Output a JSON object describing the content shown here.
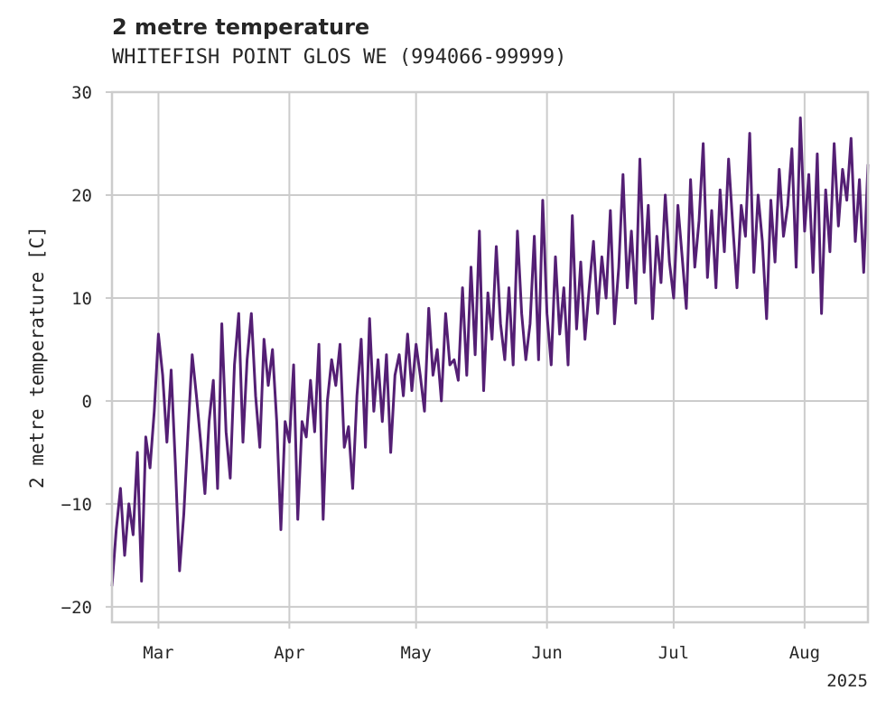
{
  "chart_data": {
    "type": "line",
    "title": "2 metre temperature",
    "subtitle": "WHITEFISH POINT GLOS WE (994066-99999)",
    "ylabel": "2 metre temperature [C]",
    "xlabel": "",
    "year_label": "2025",
    "ylim": [
      -21.5,
      30
    ],
    "xlim": [
      "2025-02-18",
      "2025-08-16"
    ],
    "y_ticks": [
      -20,
      -10,
      0,
      10,
      20,
      30
    ],
    "x_ticks": [
      {
        "date": "2025-03-01",
        "label": "Mar"
      },
      {
        "date": "2025-04-01",
        "label": "Apr"
      },
      {
        "date": "2025-05-01",
        "label": "May"
      },
      {
        "date": "2025-06-01",
        "label": "Jun"
      },
      {
        "date": "2025-07-01",
        "label": "Jul"
      },
      {
        "date": "2025-08-01",
        "label": "Aug"
      }
    ],
    "grid": true,
    "line_color": "#541f74",
    "grid_color": "#cccccc",
    "series": [
      {
        "values": [
          [
            "2025-02-18",
            -18.0
          ],
          [
            "2025-02-19",
            -12.5
          ],
          [
            "2025-02-20",
            -8.5
          ],
          [
            "2025-02-21",
            -15.0
          ],
          [
            "2025-02-22",
            -10.0
          ],
          [
            "2025-02-23",
            -13.0
          ],
          [
            "2025-02-24",
            -5.0
          ],
          [
            "2025-02-25",
            -17.5
          ],
          [
            "2025-02-26",
            -3.5
          ],
          [
            "2025-02-27",
            -6.5
          ],
          [
            "2025-02-28",
            -1.0
          ],
          [
            "2025-03-01",
            6.5
          ],
          [
            "2025-03-02",
            2.5
          ],
          [
            "2025-03-03",
            -4.0
          ],
          [
            "2025-03-04",
            3.0
          ],
          [
            "2025-03-05",
            -6.0
          ],
          [
            "2025-03-06",
            -16.5
          ],
          [
            "2025-03-07",
            -11.0
          ],
          [
            "2025-03-08",
            -3.0
          ],
          [
            "2025-03-09",
            4.5
          ],
          [
            "2025-03-10",
            0.5
          ],
          [
            "2025-03-11",
            -4.0
          ],
          [
            "2025-03-12",
            -9.0
          ],
          [
            "2025-03-13",
            -2.0
          ],
          [
            "2025-03-14",
            2.0
          ],
          [
            "2025-03-15",
            -8.5
          ],
          [
            "2025-03-16",
            7.5
          ],
          [
            "2025-03-17",
            -3.0
          ],
          [
            "2025-03-18",
            -7.5
          ],
          [
            "2025-03-19",
            3.5
          ],
          [
            "2025-03-20",
            8.5
          ],
          [
            "2025-03-21",
            -4.0
          ],
          [
            "2025-03-22",
            4.0
          ],
          [
            "2025-03-23",
            8.5
          ],
          [
            "2025-03-24",
            0.5
          ],
          [
            "2025-03-25",
            -4.5
          ],
          [
            "2025-03-26",
            6.0
          ],
          [
            "2025-03-27",
            1.5
          ],
          [
            "2025-03-28",
            5.0
          ],
          [
            "2025-03-29",
            -2.0
          ],
          [
            "2025-03-30",
            -12.5
          ],
          [
            "2025-03-31",
            -2.0
          ],
          [
            "2025-04-01",
            -4.0
          ],
          [
            "2025-04-02",
            3.5
          ],
          [
            "2025-04-03",
            -11.5
          ],
          [
            "2025-04-04",
            -2.0
          ],
          [
            "2025-04-05",
            -3.5
          ],
          [
            "2025-04-06",
            2.0
          ],
          [
            "2025-04-07",
            -3.0
          ],
          [
            "2025-04-08",
            5.5
          ],
          [
            "2025-04-09",
            -11.5
          ],
          [
            "2025-04-10",
            0.0
          ],
          [
            "2025-04-11",
            4.0
          ],
          [
            "2025-04-12",
            1.5
          ],
          [
            "2025-04-13",
            5.5
          ],
          [
            "2025-04-14",
            -4.5
          ],
          [
            "2025-04-15",
            -2.5
          ],
          [
            "2025-04-16",
            -8.5
          ],
          [
            "2025-04-17",
            0.5
          ],
          [
            "2025-04-18",
            6.0
          ],
          [
            "2025-04-19",
            -4.5
          ],
          [
            "2025-04-20",
            8.0
          ],
          [
            "2025-04-21",
            -1.0
          ],
          [
            "2025-04-22",
            4.0
          ],
          [
            "2025-04-23",
            -2.0
          ],
          [
            "2025-04-24",
            4.5
          ],
          [
            "2025-04-25",
            -5.0
          ],
          [
            "2025-04-26",
            2.5
          ],
          [
            "2025-04-27",
            4.5
          ],
          [
            "2025-04-28",
            0.5
          ],
          [
            "2025-04-29",
            6.5
          ],
          [
            "2025-04-30",
            1.0
          ],
          [
            "2025-05-01",
            5.5
          ],
          [
            "2025-05-02",
            2.5
          ],
          [
            "2025-05-03",
            -1.0
          ],
          [
            "2025-05-04",
            9.0
          ],
          [
            "2025-05-05",
            2.5
          ],
          [
            "2025-05-06",
            5.0
          ],
          [
            "2025-05-07",
            0.0
          ],
          [
            "2025-05-08",
            8.5
          ],
          [
            "2025-05-09",
            3.5
          ],
          [
            "2025-05-10",
            4.0
          ],
          [
            "2025-05-11",
            2.0
          ],
          [
            "2025-05-12",
            11.0
          ],
          [
            "2025-05-13",
            2.5
          ],
          [
            "2025-05-14",
            13.0
          ],
          [
            "2025-05-15",
            4.5
          ],
          [
            "2025-05-16",
            16.5
          ],
          [
            "2025-05-17",
            1.0
          ],
          [
            "2025-05-18",
            10.5
          ],
          [
            "2025-05-19",
            6.0
          ],
          [
            "2025-05-20",
            15.0
          ],
          [
            "2025-05-21",
            7.5
          ],
          [
            "2025-05-22",
            4.0
          ],
          [
            "2025-05-23",
            11.0
          ],
          [
            "2025-05-24",
            3.5
          ],
          [
            "2025-05-25",
            16.5
          ],
          [
            "2025-05-26",
            8.5
          ],
          [
            "2025-05-27",
            4.0
          ],
          [
            "2025-05-28",
            7.5
          ],
          [
            "2025-05-29",
            16.0
          ],
          [
            "2025-05-30",
            4.0
          ],
          [
            "2025-05-31",
            19.5
          ],
          [
            "2025-06-01",
            8.5
          ],
          [
            "2025-06-02",
            3.5
          ],
          [
            "2025-06-03",
            14.0
          ],
          [
            "2025-06-04",
            6.5
          ],
          [
            "2025-06-05",
            11.0
          ],
          [
            "2025-06-06",
            3.5
          ],
          [
            "2025-06-07",
            18.0
          ],
          [
            "2025-06-08",
            7.0
          ],
          [
            "2025-06-09",
            13.5
          ],
          [
            "2025-06-10",
            6.0
          ],
          [
            "2025-06-11",
            11.0
          ],
          [
            "2025-06-12",
            15.5
          ],
          [
            "2025-06-13",
            8.5
          ],
          [
            "2025-06-14",
            14.0
          ],
          [
            "2025-06-15",
            10.0
          ],
          [
            "2025-06-16",
            18.5
          ],
          [
            "2025-06-17",
            7.5
          ],
          [
            "2025-06-18",
            13.0
          ],
          [
            "2025-06-19",
            22.0
          ],
          [
            "2025-06-20",
            11.0
          ],
          [
            "2025-06-21",
            16.5
          ],
          [
            "2025-06-22",
            9.5
          ],
          [
            "2025-06-23",
            23.5
          ],
          [
            "2025-06-24",
            12.5
          ],
          [
            "2025-06-25",
            19.0
          ],
          [
            "2025-06-26",
            8.0
          ],
          [
            "2025-06-27",
            16.0
          ],
          [
            "2025-06-28",
            11.5
          ],
          [
            "2025-06-29",
            20.0
          ],
          [
            "2025-06-30",
            13.5
          ],
          [
            "2025-07-01",
            10.0
          ],
          [
            "2025-07-02",
            19.0
          ],
          [
            "2025-07-03",
            14.0
          ],
          [
            "2025-07-04",
            9.0
          ],
          [
            "2025-07-05",
            21.5
          ],
          [
            "2025-07-06",
            13.0
          ],
          [
            "2025-07-07",
            17.5
          ],
          [
            "2025-07-08",
            25.0
          ],
          [
            "2025-07-09",
            12.0
          ],
          [
            "2025-07-10",
            18.5
          ],
          [
            "2025-07-11",
            11.0
          ],
          [
            "2025-07-12",
            20.5
          ],
          [
            "2025-07-13",
            14.5
          ],
          [
            "2025-07-14",
            23.5
          ],
          [
            "2025-07-15",
            17.0
          ],
          [
            "2025-07-16",
            11.0
          ],
          [
            "2025-07-17",
            19.0
          ],
          [
            "2025-07-18",
            16.0
          ],
          [
            "2025-07-19",
            26.0
          ],
          [
            "2025-07-20",
            12.5
          ],
          [
            "2025-07-21",
            20.0
          ],
          [
            "2025-07-22",
            15.5
          ],
          [
            "2025-07-23",
            8.0
          ],
          [
            "2025-07-24",
            19.5
          ],
          [
            "2025-07-25",
            13.5
          ],
          [
            "2025-07-26",
            22.5
          ],
          [
            "2025-07-27",
            16.0
          ],
          [
            "2025-07-28",
            19.0
          ],
          [
            "2025-07-29",
            24.5
          ],
          [
            "2025-07-30",
            13.0
          ],
          [
            "2025-07-31",
            27.5
          ],
          [
            "2025-08-01",
            16.5
          ],
          [
            "2025-08-02",
            22.0
          ],
          [
            "2025-08-03",
            12.5
          ],
          [
            "2025-08-04",
            24.0
          ],
          [
            "2025-08-05",
            8.5
          ],
          [
            "2025-08-06",
            20.5
          ],
          [
            "2025-08-07",
            14.5
          ],
          [
            "2025-08-08",
            25.0
          ],
          [
            "2025-08-09",
            17.0
          ],
          [
            "2025-08-10",
            22.5
          ],
          [
            "2025-08-11",
            19.5
          ],
          [
            "2025-08-12",
            25.5
          ],
          [
            "2025-08-13",
            15.5
          ],
          [
            "2025-08-14",
            21.5
          ],
          [
            "2025-08-15",
            12.5
          ],
          [
            "2025-08-16",
            23.0
          ]
        ]
      }
    ]
  }
}
